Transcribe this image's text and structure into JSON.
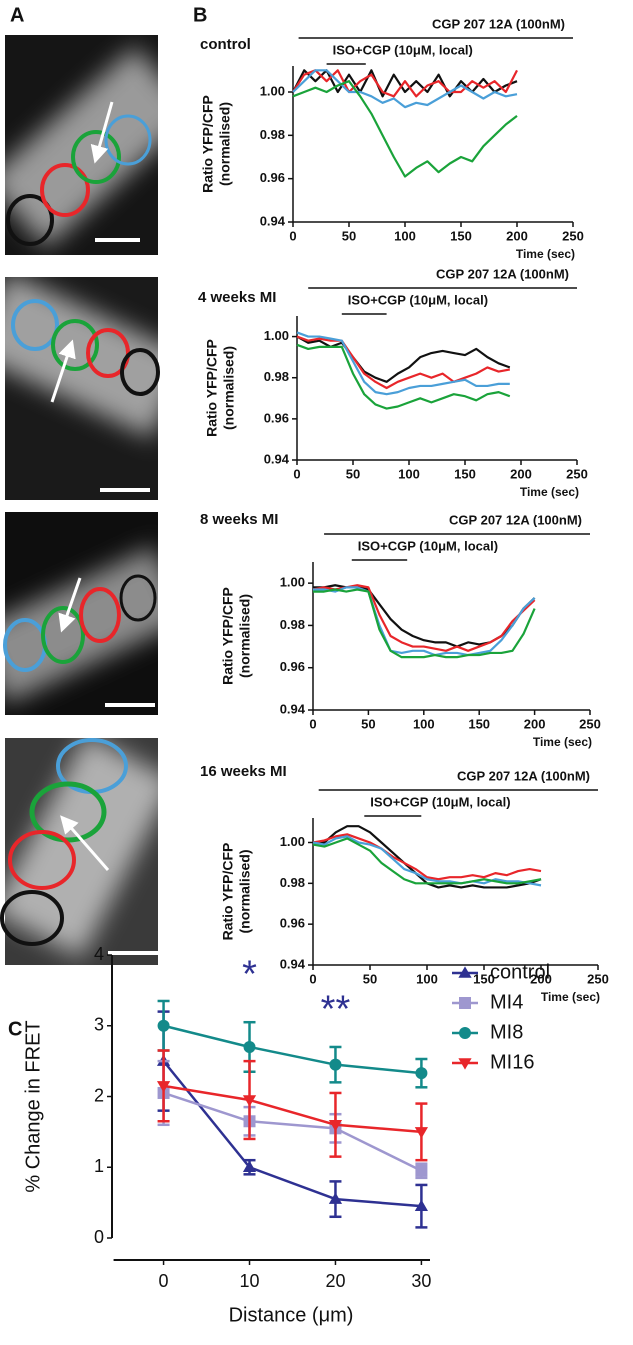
{
  "panel_labels": [
    "A",
    "B",
    "C"
  ],
  "chart_data": [
    {
      "type": "line",
      "title": "control",
      "ylabel": [
        "Ratio YFP/CFP",
        "(normalised)"
      ],
      "xlabel": "Time (sec)",
      "xlim": [
        0,
        250
      ],
      "xticks": [
        0,
        50,
        100,
        150,
        200,
        250
      ],
      "ylim": [
        0.94,
        1.012
      ],
      "yticks": [
        0.94,
        0.96,
        0.98,
        {
          "value": 1,
          "label": "1.00"
        }
      ],
      "annotations": [
        {
          "text": "CGP 207 12A (100nM)",
          "x": [
            5,
            250
          ]
        },
        {
          "text": "ISO+CGP (10μM, local)",
          "x": [
            30,
            65
          ]
        }
      ],
      "x": [
        0,
        10,
        20,
        30,
        40,
        50,
        60,
        70,
        80,
        90,
        100,
        110,
        120,
        130,
        140,
        150,
        160,
        170,
        180,
        190,
        200
      ],
      "series": [
        {
          "name": "black",
          "color": "#111111",
          "values": [
            1.0,
            1.01,
            1.005,
            1.01,
            1.0,
            1.008,
            1.0,
            1.01,
            0.998,
            1.008,
            1.0,
            1.005,
            1.0,
            1.008,
            0.998,
            1.005,
            1.0,
            1.006,
            1.0,
            1.003,
            1.005
          ]
        },
        {
          "name": "red",
          "color": "#e8262a",
          "values": [
            1.0,
            1.008,
            1.01,
            1.005,
            1.01,
            1.0,
            1.005,
            1.008,
            1.0,
            0.998,
            1.005,
            0.998,
            1.003,
            1.005,
            1.0,
            1.0,
            1.005,
            1.002,
            1.005,
            1.0,
            1.01
          ]
        },
        {
          "name": "blue",
          "color": "#4a9fd8",
          "values": [
            1.0,
            1.005,
            1.01,
            1.01,
            1.005,
            1.0,
            1.0,
            0.998,
            0.995,
            0.997,
            0.993,
            0.995,
            0.994,
            0.997,
            1.0,
            1.003,
            1.0,
            0.997,
            1.0,
            0.998,
            0.999
          ]
        },
        {
          "name": "green",
          "color": "#1aa33a",
          "values": [
            0.998,
            1.0,
            1.002,
            1.0,
            1.003,
            1.005,
            0.998,
            0.99,
            0.98,
            0.97,
            0.961,
            0.965,
            0.968,
            0.963,
            0.967,
            0.97,
            0.968,
            0.975,
            0.98,
            0.985,
            0.989
          ]
        }
      ]
    },
    {
      "type": "line",
      "title": "4 weeks MI",
      "ylabel": [
        "Ratio YFP/CFP",
        "(normalised)"
      ],
      "xlabel": "Time (sec)",
      "xlim": [
        0,
        250
      ],
      "xticks": [
        0,
        50,
        100,
        150,
        200,
        250
      ],
      "ylim": [
        0.94,
        1.01
      ],
      "yticks": [
        0.94,
        0.96,
        0.98,
        {
          "value": 1,
          "label": "1.00"
        }
      ],
      "annotations": [
        {
          "text": "CGP 207 12A (100nM)",
          "x": [
            10,
            250
          ]
        },
        {
          "text": "ISO+CGP (10μM, local)",
          "x": [
            40,
            80
          ]
        }
      ],
      "x": [
        0,
        10,
        20,
        30,
        40,
        50,
        60,
        70,
        80,
        90,
        100,
        110,
        120,
        130,
        140,
        150,
        160,
        170,
        180,
        190
      ],
      "series": [
        {
          "name": "black",
          "color": "#111111",
          "values": [
            1.0,
            0.997,
            0.998,
            0.995,
            0.997,
            0.99,
            0.983,
            0.98,
            0.978,
            0.982,
            0.985,
            0.99,
            0.992,
            0.993,
            0.992,
            0.991,
            0.994,
            0.99,
            0.987,
            0.985
          ]
        },
        {
          "name": "red",
          "color": "#e8262a",
          "values": [
            1.0,
            0.998,
            0.999,
            0.998,
            0.998,
            0.99,
            0.982,
            0.978,
            0.975,
            0.978,
            0.98,
            0.982,
            0.98,
            0.982,
            0.978,
            0.98,
            0.982,
            0.985,
            0.983,
            0.984
          ]
        },
        {
          "name": "blue",
          "color": "#4a9fd8",
          "values": [
            1.002,
            1.0,
            1.0,
            0.999,
            0.998,
            0.988,
            0.978,
            0.973,
            0.972,
            0.973,
            0.975,
            0.976,
            0.976,
            0.977,
            0.978,
            0.979,
            0.976,
            0.976,
            0.977,
            0.977
          ]
        },
        {
          "name": "green",
          "color": "#1aa33a",
          "values": [
            0.996,
            0.994,
            0.995,
            0.995,
            0.995,
            0.982,
            0.972,
            0.967,
            0.965,
            0.966,
            0.968,
            0.97,
            0.968,
            0.97,
            0.972,
            0.971,
            0.969,
            0.972,
            0.973,
            0.971
          ]
        }
      ]
    },
    {
      "type": "line",
      "title": "8 weeks MI",
      "ylabel": [
        "Ratio YFP/CFP",
        "(normalised)"
      ],
      "xlabel": "Time (sec)",
      "xlim": [
        0,
        250
      ],
      "xticks": [
        0,
        50,
        100,
        150,
        200,
        250
      ],
      "ylim": [
        0.94,
        1.01
      ],
      "yticks": [
        0.94,
        0.96,
        0.98,
        {
          "value": 1,
          "label": "1.00"
        }
      ],
      "annotations": [
        {
          "text": "CGP 207 12A (100nM)",
          "x": [
            10,
            250
          ]
        },
        {
          "text": "ISO+CGP (10μM, local)",
          "x": [
            35,
            85
          ]
        }
      ],
      "x": [
        0,
        10,
        20,
        30,
        40,
        50,
        60,
        70,
        80,
        90,
        100,
        110,
        120,
        130,
        140,
        150,
        160,
        170,
        180,
        190,
        200
      ],
      "series": [
        {
          "name": "black",
          "color": "#111111",
          "values": [
            0.998,
            0.998,
            0.999,
            0.998,
            0.998,
            0.997,
            0.99,
            0.983,
            0.978,
            0.975,
            0.973,
            0.972,
            0.972,
            0.97,
            0.972,
            0.971,
            0.972,
            0.975,
            0.98,
            0.988,
            0.993
          ]
        },
        {
          "name": "red",
          "color": "#e8262a",
          "values": [
            0.997,
            0.998,
            0.997,
            0.998,
            0.999,
            0.998,
            0.985,
            0.975,
            0.972,
            0.97,
            0.97,
            0.969,
            0.968,
            0.97,
            0.968,
            0.97,
            0.972,
            0.975,
            0.982,
            0.987,
            0.992
          ]
        },
        {
          "name": "blue",
          "color": "#4a9fd8",
          "values": [
            0.997,
            0.997,
            0.996,
            0.998,
            0.998,
            0.996,
            0.98,
            0.968,
            0.967,
            0.968,
            0.968,
            0.966,
            0.967,
            0.967,
            0.966,
            0.967,
            0.968,
            0.973,
            0.98,
            0.988,
            0.993
          ]
        },
        {
          "name": "green",
          "color": "#1aa33a",
          "values": [
            0.996,
            0.996,
            0.997,
            0.996,
            0.997,
            0.996,
            0.978,
            0.968,
            0.965,
            0.965,
            0.965,
            0.966,
            0.965,
            0.965,
            0.966,
            0.966,
            0.967,
            0.967,
            0.968,
            0.976,
            0.988
          ]
        }
      ]
    },
    {
      "type": "line",
      "title": "16 weeks MI",
      "ylabel": [
        "Ratio YFP/CFP",
        "(normalised)"
      ],
      "xlabel": "Time (sec)",
      "xlim": [
        0,
        250
      ],
      "xticks": [
        0,
        50,
        100,
        150,
        200,
        250
      ],
      "ylim": [
        0.94,
        1.012
      ],
      "yticks": [
        0.94,
        0.96,
        0.98,
        {
          "value": 1,
          "label": "1.00"
        }
      ],
      "annotations": [
        {
          "text": "CGP 207 12A (100nM)",
          "x": [
            5,
            250
          ]
        },
        {
          "text": "ISO+CGP (10μM, local)",
          "x": [
            45,
            95
          ]
        }
      ],
      "x": [
        0,
        10,
        20,
        30,
        40,
        50,
        60,
        70,
        80,
        90,
        100,
        110,
        120,
        130,
        140,
        150,
        160,
        170,
        180,
        190,
        200
      ],
      "series": [
        {
          "name": "black",
          "color": "#111111",
          "values": [
            1.0,
            1.0,
            1.005,
            1.008,
            1.008,
            1.005,
            1.0,
            0.995,
            0.99,
            0.985,
            0.98,
            0.978,
            0.979,
            0.978,
            0.979,
            0.978,
            0.978,
            0.978,
            0.979,
            0.98,
            0.982
          ]
        },
        {
          "name": "red",
          "color": "#e8262a",
          "values": [
            1.0,
            1.001,
            1.003,
            1.004,
            1.002,
            1.0,
            0.997,
            0.993,
            0.99,
            0.987,
            0.983,
            0.982,
            0.983,
            0.983,
            0.984,
            0.983,
            0.985,
            0.984,
            0.986,
            0.987,
            0.986
          ]
        },
        {
          "name": "blue",
          "color": "#4a9fd8",
          "values": [
            1.0,
            0.999,
            1.002,
            1.003,
            1.0,
            0.999,
            0.997,
            0.992,
            0.987,
            0.985,
            0.982,
            0.981,
            0.981,
            0.98,
            0.981,
            0.98,
            0.982,
            0.981,
            0.981,
            0.98,
            0.979
          ]
        },
        {
          "name": "green",
          "color": "#1aa33a",
          "values": [
            0.999,
            0.998,
            1.0,
            1.002,
            0.999,
            0.996,
            0.99,
            0.986,
            0.982,
            0.98,
            0.98,
            0.98,
            0.98,
            0.98,
            0.981,
            0.982,
            0.981,
            0.98,
            0.98,
            0.981,
            0.982
          ]
        }
      ]
    },
    {
      "type": "line",
      "ylabel": "% Change in FRET",
      "xlabel": "Distance (μm)",
      "xlim": [
        -6,
        31
      ],
      "xticks": [
        0,
        10,
        20,
        30
      ],
      "ylim": [
        0,
        4
      ],
      "yticks": [
        0,
        1,
        2,
        3,
        4
      ],
      "annotations": [
        {
          "text": "*",
          "x": 10,
          "y": 3.7
        },
        {
          "text": "**",
          "x": 20,
          "y": 3.2
        }
      ],
      "x": [
        0,
        10,
        20,
        30
      ],
      "series": [
        {
          "name": "control",
          "color": "#2e3192",
          "marker": "triangle-up",
          "values": [
            2.5,
            1.0,
            0.55,
            0.45
          ],
          "errors": [
            0.7,
            0.1,
            0.25,
            0.3
          ]
        },
        {
          "name": "MI4",
          "color": "#9e97cf",
          "marker": "square",
          "values": [
            2.05,
            1.65,
            1.55,
            0.95
          ],
          "errors": [
            0.45,
            0.2,
            0.2,
            0.1
          ]
        },
        {
          "name": "MI8",
          "color": "#138a8a",
          "marker": "circle",
          "values": [
            3.0,
            2.7,
            2.45,
            2.33
          ],
          "errors": [
            0.35,
            0.35,
            0.25,
            0.2
          ]
        },
        {
          "name": "MI16",
          "color": "#e8262a",
          "marker": "triangle-down",
          "values": [
            2.15,
            1.95,
            1.6,
            1.5
          ],
          "errors": [
            0.5,
            0.55,
            0.45,
            0.4
          ]
        }
      ]
    }
  ]
}
